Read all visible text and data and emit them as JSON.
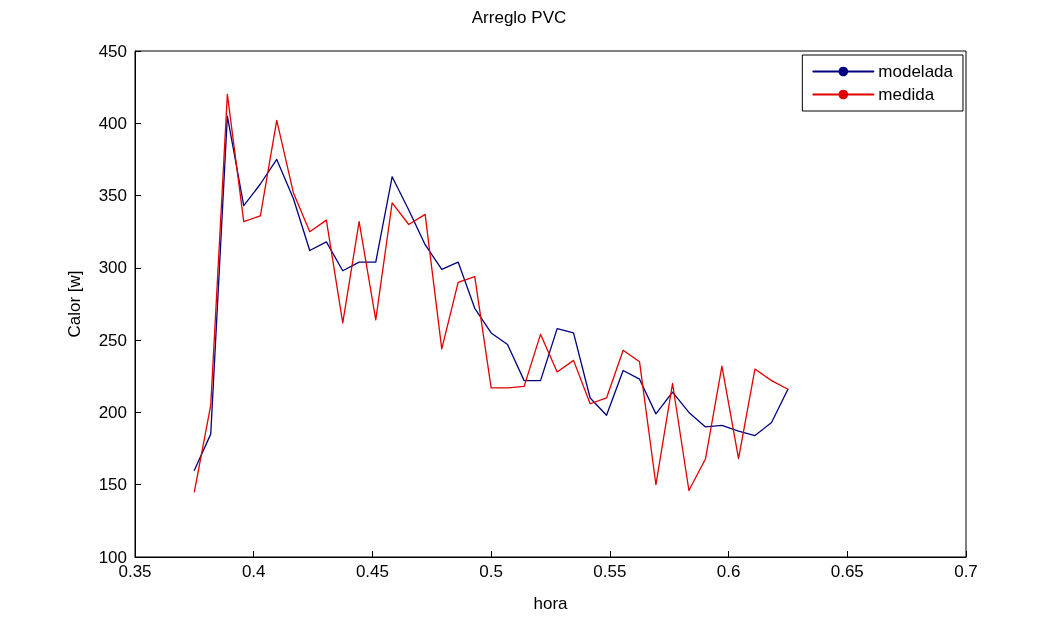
{
  "chart_data": {
    "type": "line",
    "title": "Arreglo PVC",
    "xlabel": "hora",
    "ylabel": "Calor [w]",
    "x": [
      0.375,
      0.3819,
      0.3889,
      0.3958,
      0.4028,
      0.4097,
      0.4167,
      0.4236,
      0.4306,
      0.4375,
      0.4444,
      0.4514,
      0.4583,
      0.4653,
      0.4722,
      0.4792,
      0.4861,
      0.4931,
      0.5,
      0.5069,
      0.5139,
      0.5208,
      0.5278,
      0.5347,
      0.5417,
      0.5486,
      0.5556,
      0.5625,
      0.5694,
      0.5764,
      0.5833,
      0.5903,
      0.5972,
      0.6042,
      0.6111,
      0.6181,
      0.625
    ],
    "series": [
      {
        "name": "modelada",
        "color": "#00007f",
        "values": [
          160,
          185,
          405,
          343,
          358,
          375,
          348,
          312,
          318,
          298,
          304,
          304,
          363,
          340,
          316,
          299,
          304,
          272,
          255,
          247,
          222,
          222,
          258,
          255,
          210,
          198,
          229,
          223,
          199,
          214,
          200,
          190,
          191,
          187,
          184,
          193,
          216
        ]
      },
      {
        "name": "medida",
        "color": "#e00000",
        "values": [
          145,
          205,
          420,
          332,
          336,
          402,
          352,
          325,
          333,
          262,
          332,
          264,
          345,
          330,
          337,
          244,
          290,
          294,
          217,
          217,
          218,
          254,
          228,
          236,
          206,
          210,
          243,
          235,
          150,
          220,
          146,
          168,
          232,
          168,
          230,
          222,
          216
        ]
      }
    ],
    "xlim": [
      0.35,
      0.7
    ],
    "xticks": [
      0.35,
      0.4,
      0.45,
      0.5,
      0.55,
      0.6,
      0.65,
      0.7
    ],
    "ylim": [
      100,
      450
    ],
    "yticks": [
      100,
      150,
      200,
      250,
      300,
      350,
      400,
      450
    ],
    "grid": false,
    "legend": "top right",
    "marker": "none",
    "line_style": "solid"
  }
}
